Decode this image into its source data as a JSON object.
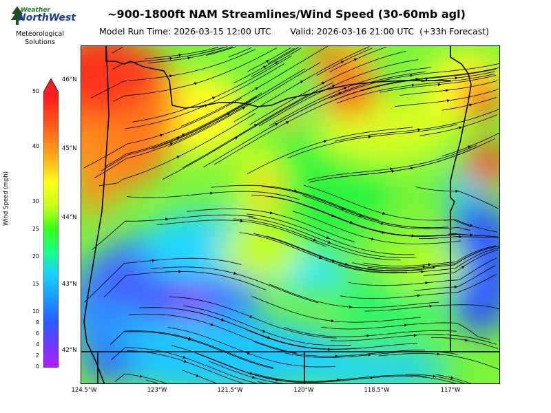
{
  "header": {
    "title": "~900-1800ft NAM Streamlines/Wind Speed (30-60mb agl)",
    "subtitle": "Model Run Time: 2026-03-15 12:00 UTC       Valid: 2026-03-16 21:00 UTC  (+33h Forecast)"
  },
  "logo": {
    "line1": "Weather",
    "line2": "NorthWest",
    "line3": "Meteorological",
    "line4": "Solutions"
  },
  "colorbar": {
    "label": "Wind Speed (mph)",
    "ticks": [
      "0",
      "2",
      "4",
      "6",
      "8",
      "10",
      "15",
      "20",
      "25",
      "30",
      "40",
      "50"
    ],
    "colors": [
      "#b21cff",
      "#6a3cff",
      "#2a5cff",
      "#1a9aff",
      "#1ad0ff",
      "#1aff8a",
      "#3aff1a",
      "#c8ff1a",
      "#ffff1a",
      "#ffb21a",
      "#ff5a1a",
      "#ff1a1a",
      "#d42a2a"
    ]
  },
  "map": {
    "lat_labels": [
      "46°N",
      "45°N",
      "44°N",
      "43°N",
      "42°N"
    ],
    "lon_labels": [
      "124.5°W",
      "123°W",
      "121.5°W",
      "120°W",
      "118.5°W",
      "117°W"
    ],
    "colors": {
      "purple": "#9b30ff",
      "blue": "#2f6bff",
      "cyan": "#1fd4ff",
      "green": "#29f53c",
      "lime": "#a6ff1f",
      "yellow": "#ffff23",
      "orange": "#ffa81f",
      "red": "#ff2a1c"
    }
  }
}
